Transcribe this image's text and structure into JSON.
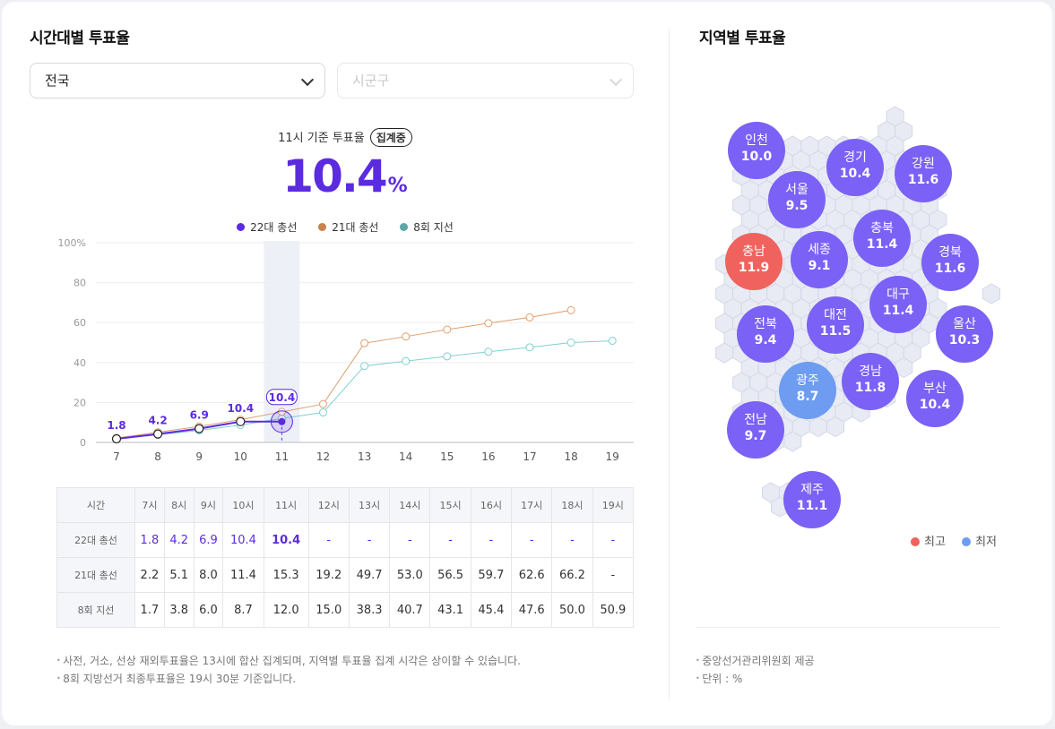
{
  "left": {
    "title": "시간대별 투표율",
    "select_region": "전국",
    "select_district_placeholder": "시군구",
    "summary_label": "11시 기준 투표율",
    "summary_badge": "집계중",
    "summary_value": "10.4",
    "summary_unit": "%",
    "notes": [
      "사전, 거소, 선상 재외투표율은 13시에 합산 집계되며, 지역별 투표율 집계 시각은 상이할 수 있습니다.",
      "8회 지방선거 최종투표율은 19시 30분 기준입니다."
    ]
  },
  "chart_data": {
    "type": "line",
    "x": [
      7,
      8,
      9,
      10,
      11,
      12,
      13,
      14,
      15,
      16,
      17,
      18,
      19
    ],
    "x_tick_labels": [
      "7",
      "8",
      "9",
      "10",
      "11",
      "12",
      "13",
      "14",
      "15",
      "16",
      "17",
      "18",
      "19"
    ],
    "y_tick_labels": [
      "100%",
      "80",
      "60",
      "40",
      "20",
      "0"
    ],
    "ylim": [
      0,
      100
    ],
    "highlight_x": 11,
    "series": [
      {
        "name": "22대 총선",
        "color": "#5b2be0",
        "values": [
          1.8,
          4.2,
          6.9,
          10.4,
          10.4,
          null,
          null,
          null,
          null,
          null,
          null,
          null,
          null
        ],
        "labels": [
          "1.8",
          "4.2",
          "6.9",
          "10.4",
          "10.4"
        ]
      },
      {
        "name": "21대 총선",
        "color": "#e0a070",
        "values": [
          2.2,
          5.1,
          8.0,
          11.4,
          15.3,
          19.2,
          49.7,
          53.0,
          56.5,
          59.7,
          62.6,
          66.2,
          null
        ]
      },
      {
        "name": "8회 지선",
        "color": "#7fd0d0",
        "values": [
          1.7,
          3.8,
          6.0,
          8.7,
          12.0,
          15.0,
          38.3,
          40.7,
          43.1,
          45.4,
          47.6,
          50.0,
          50.9
        ]
      }
    ],
    "legend": [
      {
        "label": "22대 총선",
        "color": "#5b2be0"
      },
      {
        "label": "21대 총선",
        "color": "#c8824a"
      },
      {
        "label": "8회 지선",
        "color": "#5ca8a8"
      }
    ]
  },
  "table": {
    "header": [
      "시간",
      "7시",
      "8시",
      "9시",
      "10시",
      "11시",
      "12시",
      "13시",
      "14시",
      "15시",
      "16시",
      "17시",
      "18시",
      "19시"
    ],
    "rows": [
      {
        "label": "22대 총선",
        "cells": [
          "1.8",
          "4.2",
          "6.9",
          "10.4",
          "10.4",
          "-",
          "-",
          "-",
          "-",
          "-",
          "-",
          "-",
          "-"
        ]
      },
      {
        "label": "21대 총선",
        "cells": [
          "2.2",
          "5.1",
          "8.0",
          "11.4",
          "15.3",
          "19.2",
          "49.7",
          "53.0",
          "56.5",
          "59.7",
          "62.6",
          "66.2",
          "-"
        ]
      },
      {
        "label": "8회 지선",
        "cells": [
          "1.7",
          "3.8",
          "6.0",
          "8.7",
          "12.0",
          "15.0",
          "38.3",
          "40.7",
          "43.1",
          "45.4",
          "47.6",
          "50.0",
          "50.9"
        ]
      }
    ]
  },
  "right": {
    "title": "지역별 투표율",
    "regions": [
      {
        "name": "인천",
        "value": "10.0",
        "status": "normal"
      },
      {
        "name": "경기",
        "value": "10.4",
        "status": "normal"
      },
      {
        "name": "강원",
        "value": "11.6",
        "status": "normal"
      },
      {
        "name": "서울",
        "value": "9.5",
        "status": "normal"
      },
      {
        "name": "충북",
        "value": "11.4",
        "status": "normal"
      },
      {
        "name": "세종",
        "value": "9.1",
        "status": "normal"
      },
      {
        "name": "충남",
        "value": "11.9",
        "status": "highest"
      },
      {
        "name": "경북",
        "value": "11.6",
        "status": "normal"
      },
      {
        "name": "대구",
        "value": "11.4",
        "status": "normal"
      },
      {
        "name": "대전",
        "value": "11.5",
        "status": "normal"
      },
      {
        "name": "전북",
        "value": "9.4",
        "status": "normal"
      },
      {
        "name": "울산",
        "value": "10.3",
        "status": "normal"
      },
      {
        "name": "광주",
        "value": "8.7",
        "status": "lowest"
      },
      {
        "name": "경남",
        "value": "11.8",
        "status": "normal"
      },
      {
        "name": "부산",
        "value": "10.4",
        "status": "normal"
      },
      {
        "name": "전남",
        "value": "9.7",
        "status": "normal"
      },
      {
        "name": "제주",
        "value": "11.1",
        "status": "normal"
      }
    ],
    "legend_high": "최고",
    "legend_low": "최저",
    "colors": {
      "normal": "#7b61f5",
      "highest": "#f0625e",
      "lowest": "#6d9cf0"
    },
    "notes": [
      "중앙선거관리위원회 제공",
      "단위 : %"
    ]
  }
}
